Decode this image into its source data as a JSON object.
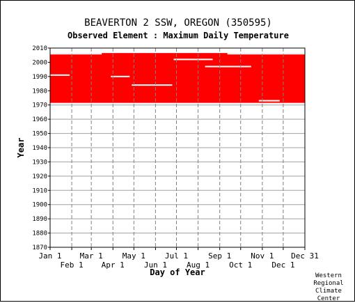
{
  "chart_data": {
    "type": "heatmap",
    "title": "BEAVERTON 2 SSW, OREGON   (350595)",
    "subtitle": "Observed Element : Maximum Daily Temperature",
    "xlabel": "Day of Year",
    "ylabel": "Year",
    "ylim": [
      1870,
      2010
    ],
    "xlim": [
      1,
      366
    ],
    "x_ticks_upper": [
      "Jan 1",
      "Mar 1",
      "May 1",
      "Jul 1",
      "Sep 1",
      "Nov 1",
      "Dec 31"
    ],
    "x_ticks_lower": [
      "Feb 1",
      "Apr 1",
      "Jun 1",
      "Aug 1",
      "Oct 1",
      "Dec 1"
    ],
    "x_tick_days_upper": [
      1,
      60,
      121,
      182,
      244,
      305,
      366
    ],
    "x_tick_days_lower": [
      32,
      91,
      152,
      213,
      274,
      335
    ],
    "y_ticks": [
      1870,
      1880,
      1890,
      1900,
      1910,
      1920,
      1930,
      1940,
      1950,
      1960,
      1970,
      1980,
      1990,
      2000,
      2010
    ],
    "grid": true,
    "data_color": "#ff0000",
    "observed_period": {
      "start_year": 1972,
      "end_year": 2006
    },
    "missing_segments": [
      {
        "year": 1991,
        "day_start": 1,
        "day_end": 29
      },
      {
        "year": 1990,
        "day_start": 88,
        "day_end": 115
      },
      {
        "year": 1984,
        "day_start": 118,
        "day_end": 176
      },
      {
        "year": 1997,
        "day_start": 223,
        "day_end": 289
      },
      {
        "year": 2002,
        "day_start": 178,
        "day_end": 234
      },
      {
        "year": 2006,
        "day_start": 1,
        "day_end": 75
      },
      {
        "year": 2006,
        "day_start": 255,
        "day_end": 366
      },
      {
        "year": 1973,
        "day_start": 300,
        "day_end": 330
      }
    ]
  },
  "credit": "Western\nRegional\nClimate\nCenter"
}
